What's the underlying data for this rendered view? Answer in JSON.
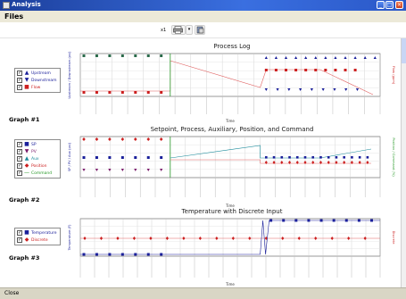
{
  "window": {
    "title": "Analysis"
  },
  "menu": {
    "files": "Files"
  },
  "toolbar": {
    "zoom": "x1"
  },
  "statusbar": {
    "close": "Close"
  },
  "graphs": [
    {
      "label": "Graph #1",
      "title": "Process Log",
      "legend": [
        "Upstream",
        "Downstream",
        "Flow"
      ],
      "colors": [
        "#1a1f9a",
        "#1a1f9a",
        "#cc1f1f"
      ],
      "ylabel_left": "Upstream / Downstream (psi)",
      "ylabel_right": "Flow (gpm)",
      "xlabel": "Time"
    },
    {
      "label": "Graph #2",
      "title": "Setpoint, Process, Auxiliary, Position, and Command",
      "legend": [
        "SP",
        "PV",
        "Aux",
        "Position",
        "Command"
      ],
      "colors": [
        "#1a1f9a",
        "#7a1a6a",
        "#1a8a9a",
        "#cc1f1f",
        "#2a9a2a"
      ],
      "ylabel_left": "SP / PV / Aux (psi)",
      "ylabel_right": "Position / Command (%)",
      "xlabel": "Time"
    },
    {
      "label": "Graph #3",
      "title": "Temperature with Discrete Input",
      "legend": [
        "Temperature",
        "Discrete"
      ],
      "colors": [
        "#1a1f9a",
        "#cc1f1f"
      ],
      "ylabel_left": "Temperature (F)",
      "ylabel_right": "Discrete",
      "xlabel": "Time"
    }
  ]
}
